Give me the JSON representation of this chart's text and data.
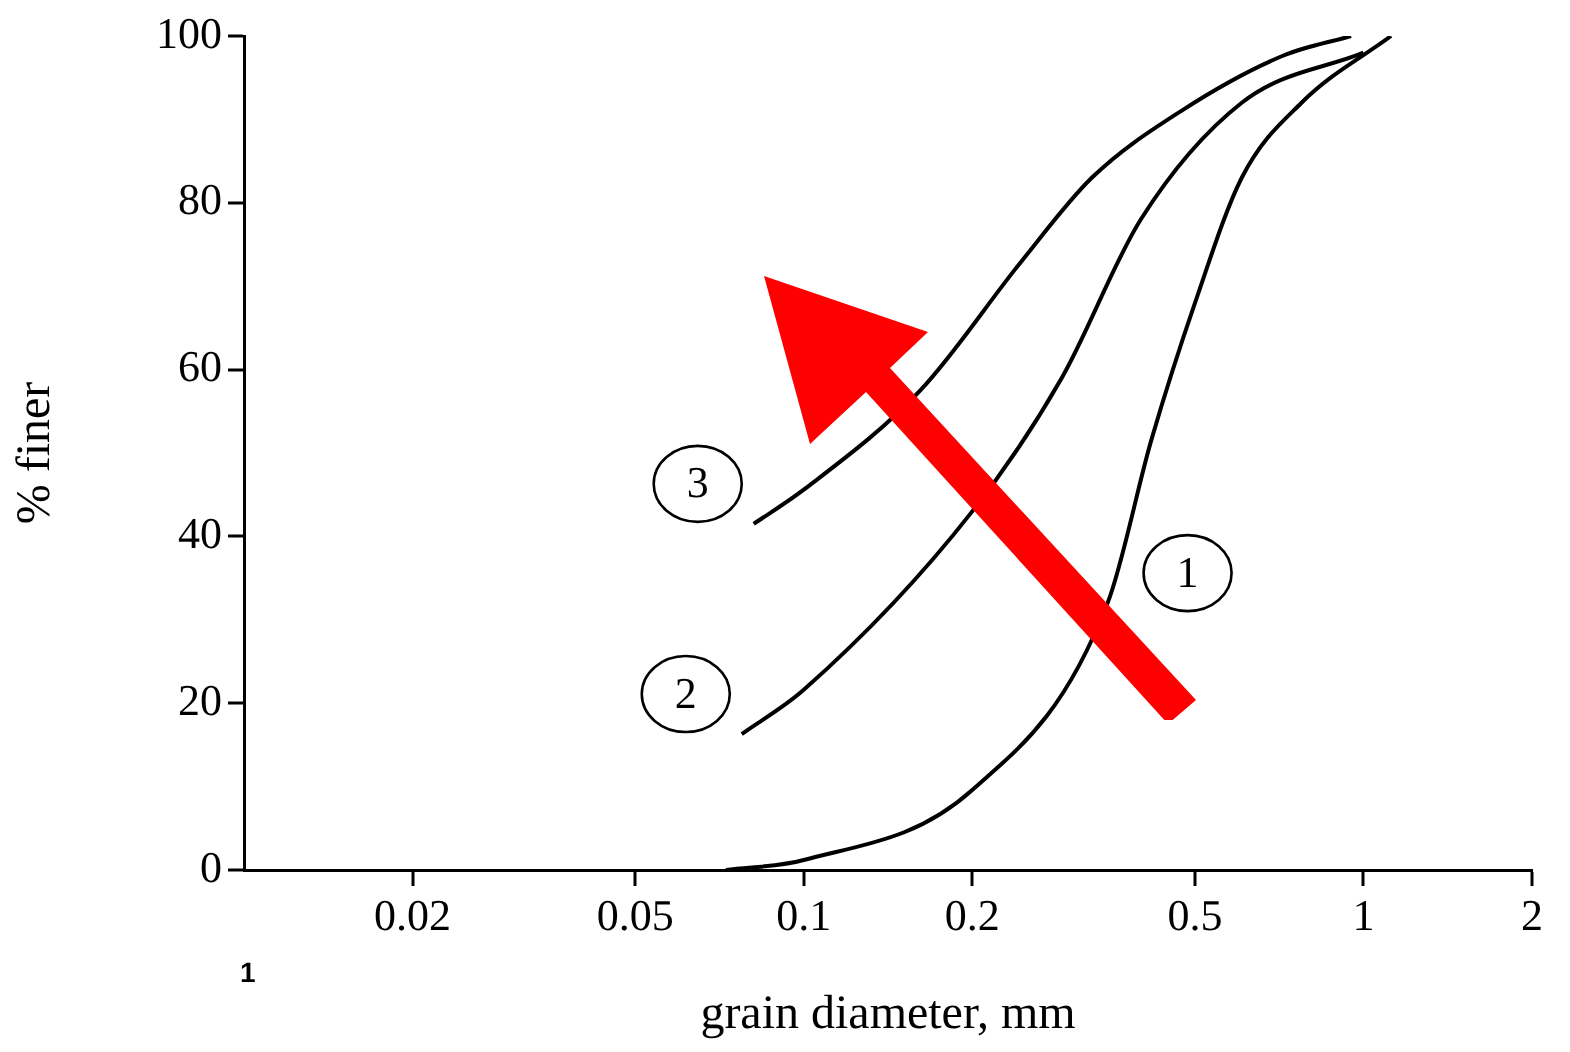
{
  "chart_data": {
    "type": "line",
    "xlabel": "grain diameter, mm",
    "ylabel": "% finer",
    "log": "x",
    "xlim": [
      0.01,
      2
    ],
    "xticks": [
      0.02,
      0.05,
      0.1,
      0.2,
      0.5,
      1,
      2
    ],
    "ylim": [
      0,
      100
    ],
    "yticks": [
      0,
      20,
      40,
      60,
      80,
      100
    ],
    "grid": false,
    "legend": false,
    "marker": "none",
    "line_style": "solid",
    "annotations": [
      "1"
    ],
    "series": [
      {
        "name": "1",
        "color": "#000000",
        "x": [
          0.0726,
          0.1,
          0.2,
          0.349,
          0.418,
          0.5,
          0.606,
          0.775,
          1.12
        ],
        "values": [
          0,
          1.2,
          9.6,
          32,
          51.6,
          68,
          83,
          92,
          100
        ]
      },
      {
        "name": "2",
        "color": "#000000",
        "x": [
          0.0775,
          0.1,
          0.2,
          0.289,
          0.4,
          0.606,
          1.0
        ],
        "values": [
          16.3,
          21.6,
          43,
          59,
          78,
          92,
          98
        ]
      },
      {
        "name": "3",
        "color": "#000000",
        "x": [
          0.0814,
          0.1,
          0.162,
          0.245,
          0.327,
          0.472,
          0.716,
          0.95
        ],
        "values": [
          41.5,
          45.6,
          57.6,
          73,
          83,
          91,
          97.6,
          100
        ]
      }
    ]
  }
}
